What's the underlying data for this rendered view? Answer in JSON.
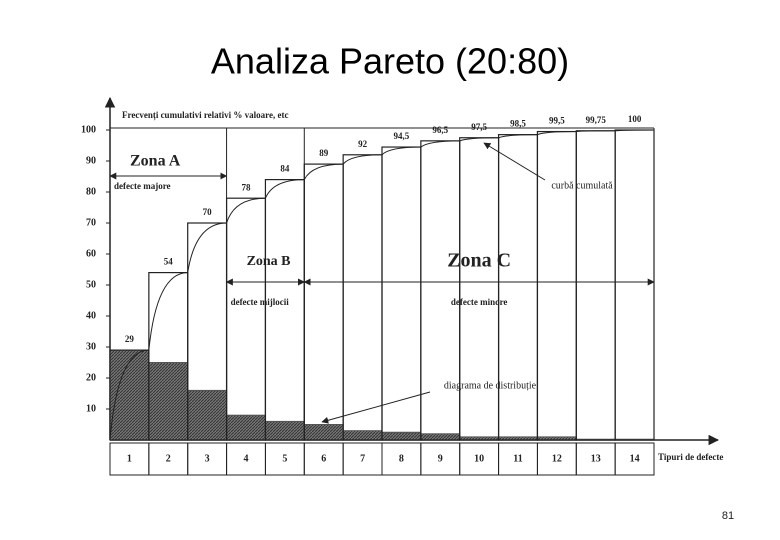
{
  "slide": {
    "page_number": "81"
  },
  "chart_data": {
    "type": "pareto",
    "title": "Analiza Pareto (20:80)",
    "y_label": "Frecvenți cumulativi relativi % valoare, etc",
    "x_label": "Tipuri de defecte",
    "categories": [
      "1",
      "2",
      "3",
      "4",
      "5",
      "6",
      "7",
      "8",
      "9",
      "10",
      "11",
      "12",
      "13",
      "14"
    ],
    "series": [
      {
        "name": "diagrama de distribuție",
        "color": "#555555",
        "values": [
          29,
          25,
          16,
          8,
          6,
          5,
          3,
          2.5,
          2,
          1,
          1,
          1,
          0.25,
          0.25
        ]
      },
      {
        "name": "curbă cumulată",
        "color": "#222222",
        "values": [
          29,
          54,
          70,
          78,
          84,
          89,
          92,
          94.5,
          96.5,
          97.5,
          98.5,
          99.5,
          99.75,
          100
        ],
        "value_labels": [
          "29",
          "54",
          "70",
          "78",
          "84",
          "89",
          "92",
          "94,5",
          "96,5",
          "97,5",
          "98,5",
          "99,5",
          "99,75",
          "100"
        ]
      }
    ],
    "zones": [
      {
        "name": "Zona A",
        "description": "defecte majore"
      },
      {
        "name": "Zona B",
        "description": "defecte mijlocii"
      },
      {
        "name": "Zona C",
        "description": "defecte minore"
      }
    ],
    "ylim": [
      0,
      100
    ],
    "yticks": [
      10,
      20,
      30,
      40,
      50,
      60,
      70,
      80,
      90,
      100
    ],
    "grid": false
  }
}
